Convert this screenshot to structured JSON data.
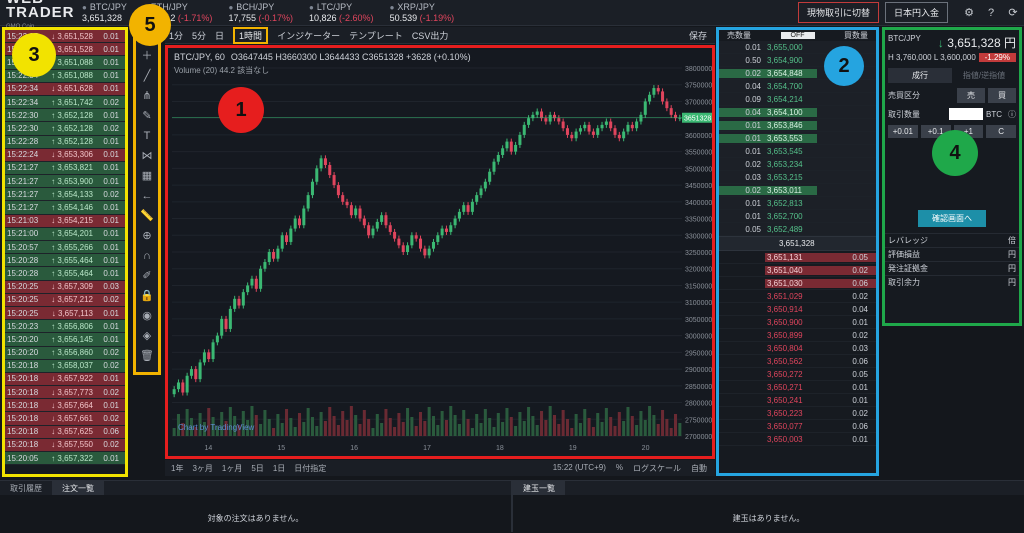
{
  "header": {
    "logo": "WEB TRADER",
    "logo_sub": "GMO Coin",
    "tickers": [
      {
        "name": "BTC/JPY",
        "price": "3,651,328",
        "change": ""
      },
      {
        "name": "ETH/JPY",
        "price": "233,012",
        "change": "(-1.71%)"
      },
      {
        "name": "BCH/JPY",
        "price": "17,755",
        "change": "(-0.17%)"
      },
      {
        "name": "LTC/JPY",
        "price": "10,826",
        "change": "(-2.60%)"
      },
      {
        "name": "XRP/JPY",
        "price": "50.539",
        "change": "(-1.19%)"
      }
    ],
    "switch_button": "現物取引に切替",
    "deposit_button": "日本円入金"
  },
  "trades": [
    {
      "time": "15:22:35",
      "price": "3,651,528",
      "qty": "0.01",
      "side": "sell"
    },
    {
      "time": "15:22:34",
      "price": "3,651,528",
      "qty": "0.01",
      "side": "sell"
    },
    {
      "time": "15:22:34",
      "price": "3,651,088",
      "qty": "0.01",
      "side": "buy"
    },
    {
      "time": "15:22:34",
      "price": "3,651,088",
      "qty": "0.01",
      "side": "buy"
    },
    {
      "time": "15:22:34",
      "price": "3,651,628",
      "qty": "0.01",
      "side": "sell"
    },
    {
      "time": "15:22:34",
      "price": "3,651,742",
      "qty": "0.02",
      "side": "buy"
    },
    {
      "time": "15:22:30",
      "price": "3,652,128",
      "qty": "0.01",
      "side": "buy"
    },
    {
      "time": "15:22:30",
      "price": "3,652,128",
      "qty": "0.02",
      "side": "buy"
    },
    {
      "time": "15:22:28",
      "price": "3,652,128",
      "qty": "0.01",
      "side": "buy"
    },
    {
      "time": "15:22:24",
      "price": "3,653,306",
      "qty": "0.01",
      "side": "sell"
    },
    {
      "time": "15:21:27",
      "price": "3,653,821",
      "qty": "0.01",
      "side": "buy"
    },
    {
      "time": "15:21:27",
      "price": "3,653,900",
      "qty": "0.01",
      "side": "buy"
    },
    {
      "time": "15:21:27",
      "price": "3,654,133",
      "qty": "0.02",
      "side": "buy"
    },
    {
      "time": "15:21:27",
      "price": "3,654,146",
      "qty": "0.01",
      "side": "buy"
    },
    {
      "time": "15:21:03",
      "price": "3,654,215",
      "qty": "0.01",
      "side": "sell"
    },
    {
      "time": "15:21:00",
      "price": "3,654,201",
      "qty": "0.01",
      "side": "buy"
    },
    {
      "time": "15:20:57",
      "price": "3,655,266",
      "qty": "0.01",
      "side": "buy"
    },
    {
      "time": "15:20:28",
      "price": "3,655,464",
      "qty": "0.01",
      "side": "buy"
    },
    {
      "time": "15:20:28",
      "price": "3,655,464",
      "qty": "0.01",
      "side": "buy"
    },
    {
      "time": "15:20:25",
      "price": "3,657,309",
      "qty": "0.03",
      "side": "sell"
    },
    {
      "time": "15:20:25",
      "price": "3,657,212",
      "qty": "0.02",
      "side": "sell"
    },
    {
      "time": "15:20:25",
      "price": "3,657,113",
      "qty": "0.01",
      "side": "sell"
    },
    {
      "time": "15:20:23",
      "price": "3,656,806",
      "qty": "0.01",
      "side": "buy"
    },
    {
      "time": "15:20:20",
      "price": "3,656,145",
      "qty": "0.01",
      "side": "buy"
    },
    {
      "time": "15:20:20",
      "price": "3,656,860",
      "qty": "0.02",
      "side": "buy"
    },
    {
      "time": "15:20:18",
      "price": "3,658,037",
      "qty": "0.02",
      "side": "buy"
    },
    {
      "time": "15:20:18",
      "price": "3,657,922",
      "qty": "0.01",
      "side": "sell"
    },
    {
      "time": "15:20:18",
      "price": "3,657,773",
      "qty": "0.02",
      "side": "sell"
    },
    {
      "time": "15:20:18",
      "price": "3,657,664",
      "qty": "0.01",
      "side": "sell"
    },
    {
      "time": "15:20:18",
      "price": "3,657,661",
      "qty": "0.02",
      "side": "sell"
    },
    {
      "time": "15:20:18",
      "price": "3,657,625",
      "qty": "0.06",
      "side": "sell"
    },
    {
      "time": "15:20:18",
      "price": "3,657,550",
      "qty": "0.02",
      "side": "sell"
    },
    {
      "time": "15:20:05",
      "price": "3,657,322",
      "qty": "0.01",
      "side": "buy"
    }
  ],
  "chart_toolbar": {
    "items": [
      "1分",
      "5分",
      "日"
    ],
    "selected": "1時間",
    "indicator": "インジケーター",
    "template": "テンプレート",
    "csv": "CSV出力",
    "save": "保存"
  },
  "chart": {
    "symbol": "BTC/JPY, 60",
    "ohlc": "O3647445 H3660300 L3644433 C3651328 +3628 (+0.10%)",
    "volume": "Volume (20)",
    "volume_val": "44.2",
    "volume_note": "該当なし",
    "watermark": "Chart by TradingView",
    "last_price_tag": "3651328"
  },
  "chart_data": {
    "type": "candlestick",
    "ylim": [
      2700000,
      3800000
    ],
    "yticks": [
      3800000,
      3750000,
      3700000,
      3650000,
      3600000,
      3550000,
      3500000,
      3450000,
      3400000,
      3350000,
      3300000,
      3250000,
      3200000,
      3150000,
      3100000,
      3050000,
      3000000,
      2950000,
      2900000,
      2850000,
      2800000,
      2750000,
      2700000
    ],
    "xticks": [
      "14",
      "15",
      "16",
      "17",
      "18",
      "19",
      "20"
    ],
    "closes": [
      2840000,
      2860000,
      2830000,
      2880000,
      2900000,
      2870000,
      2920000,
      2950000,
      2930000,
      2980000,
      3000000,
      3050000,
      3020000,
      3080000,
      3110000,
      3090000,
      3130000,
      3150000,
      3170000,
      3140000,
      3200000,
      3220000,
      3250000,
      3230000,
      3260000,
      3300000,
      3280000,
      3320000,
      3350000,
      3330000,
      3380000,
      3420000,
      3460000,
      3500000,
      3530000,
      3510000,
      3480000,
      3450000,
      3420000,
      3400000,
      3390000,
      3360000,
      3380000,
      3350000,
      3330000,
      3300000,
      3320000,
      3340000,
      3360000,
      3330000,
      3310000,
      3290000,
      3270000,
      3250000,
      3270000,
      3300000,
      3290000,
      3260000,
      3240000,
      3260000,
      3280000,
      3300000,
      3320000,
      3310000,
      3330000,
      3350000,
      3370000,
      3390000,
      3370000,
      3400000,
      3420000,
      3440000,
      3460000,
      3490000,
      3520000,
      3540000,
      3560000,
      3580000,
      3550000,
      3570000,
      3600000,
      3630000,
      3650000,
      3660000,
      3670000,
      3650000,
      3640000,
      3660000,
      3650000,
      3640000,
      3620000,
      3600000,
      3590000,
      3610000,
      3620000,
      3630000,
      3610000,
      3600000,
      3620000,
      3630000,
      3640000,
      3620000,
      3600000,
      3590000,
      3610000,
      3630000,
      3620000,
      3640000,
      3660000,
      3700000,
      3720000,
      3740000,
      3730000,
      3700000,
      3680000,
      3660000,
      3650000,
      3651328
    ],
    "range_buttons": [
      "1年",
      "3ヶ月",
      "1ヶ月",
      "5日",
      "1日",
      "日付指定"
    ],
    "time_label": "15:22 (UTC+9)",
    "pct": "%",
    "log": "ログスケール",
    "auto": "自動"
  },
  "orderbook": {
    "sell_label": "売数量",
    "off_label": "OFF",
    "buy_label": "買数量",
    "asks": [
      {
        "amt": "0.01",
        "price": "3,655,000",
        "hl": false
      },
      {
        "amt": "0.50",
        "price": "3,654,900",
        "hl": false
      },
      {
        "amt": "0.02",
        "price": "3,654,848",
        "hl": true
      },
      {
        "amt": "0.04",
        "price": "3,654,700",
        "hl": false
      },
      {
        "amt": "0.09",
        "price": "3,654,214",
        "hl": false
      },
      {
        "amt": "0.04",
        "price": "3,654,100",
        "hl": true
      },
      {
        "amt": "0.01",
        "price": "3,653,846",
        "hl": true
      },
      {
        "amt": "0.01",
        "price": "3,653,553",
        "hl": true
      },
      {
        "amt": "0.01",
        "price": "3,653,545",
        "hl": false
      },
      {
        "amt": "0.02",
        "price": "3,653,234",
        "hl": false
      },
      {
        "amt": "0.03",
        "price": "3,653,215",
        "hl": false
      },
      {
        "amt": "0.02",
        "price": "3,653,011",
        "hl": true
      },
      {
        "amt": "0.01",
        "price": "3,652,813",
        "hl": false
      },
      {
        "amt": "0.01",
        "price": "3,652,700",
        "hl": false
      },
      {
        "amt": "0.05",
        "price": "3,652,489",
        "hl": false
      }
    ],
    "mid": "3,651,328",
    "bids": [
      {
        "price": "3,651,131",
        "amt": "0.05",
        "hl": true
      },
      {
        "price": "3,651,040",
        "amt": "0.02",
        "hl": true
      },
      {
        "price": "3,651,030",
        "amt": "0.06",
        "hl": true
      },
      {
        "price": "3,651,029",
        "amt": "0.02",
        "hl": false
      },
      {
        "price": "3,650,914",
        "amt": "0.04",
        "hl": false
      },
      {
        "price": "3,650,900",
        "amt": "0.01",
        "hl": false
      },
      {
        "price": "3,650,899",
        "amt": "0.02",
        "hl": false
      },
      {
        "price": "3,650,804",
        "amt": "0.03",
        "hl": false
      },
      {
        "price": "3,650,562",
        "amt": "0.06",
        "hl": false
      },
      {
        "price": "3,650,272",
        "amt": "0.05",
        "hl": false
      },
      {
        "price": "3,650,271",
        "amt": "0.01",
        "hl": false
      },
      {
        "price": "3,650,241",
        "amt": "0.01",
        "hl": false
      },
      {
        "price": "3,650,223",
        "amt": "0.02",
        "hl": false
      },
      {
        "price": "3,650,077",
        "amt": "0.06",
        "hl": false
      },
      {
        "price": "3,650,003",
        "amt": "0.01",
        "hl": false
      }
    ]
  },
  "order_panel": {
    "pair": "BTC/JPY",
    "price": "3,651,328 円",
    "high_label": "H",
    "high": "3,760,000",
    "low_label": "L",
    "low": "3,600,000",
    "change": "-1.29%",
    "tab_active": "成行",
    "tab_inactive": "指値/逆指値",
    "side_label": "売買区分",
    "sell": "売",
    "buy": "買",
    "qty_label": "取引数量",
    "unit": "BTC",
    "steps": [
      "+0.01",
      "+0.1",
      "+1",
      "C"
    ],
    "confirm": "確認画面へ",
    "info": [
      {
        "label": "レバレッジ",
        "val": "倍"
      },
      {
        "label": "評価損益",
        "val": "円"
      },
      {
        "label": "発注証拠金",
        "val": "円"
      },
      {
        "label": "取引余力",
        "val": "円"
      }
    ]
  },
  "bottom": {
    "left_tabs": [
      "取引履歴",
      "注文一覧"
    ],
    "left_empty": "対象の注文はありません。",
    "right_tab": "建玉一覧",
    "right_empty": "建玉はありません。"
  },
  "badges": {
    "b1": "1",
    "b2": "2",
    "b3": "3",
    "b4": "4",
    "b5": "5"
  },
  "colors": {
    "badge1": "#e61e1e",
    "badge2": "#25a4e0",
    "badge3": "#f2e300",
    "badge4": "#1fa84a",
    "badge5": "#f2b300"
  }
}
